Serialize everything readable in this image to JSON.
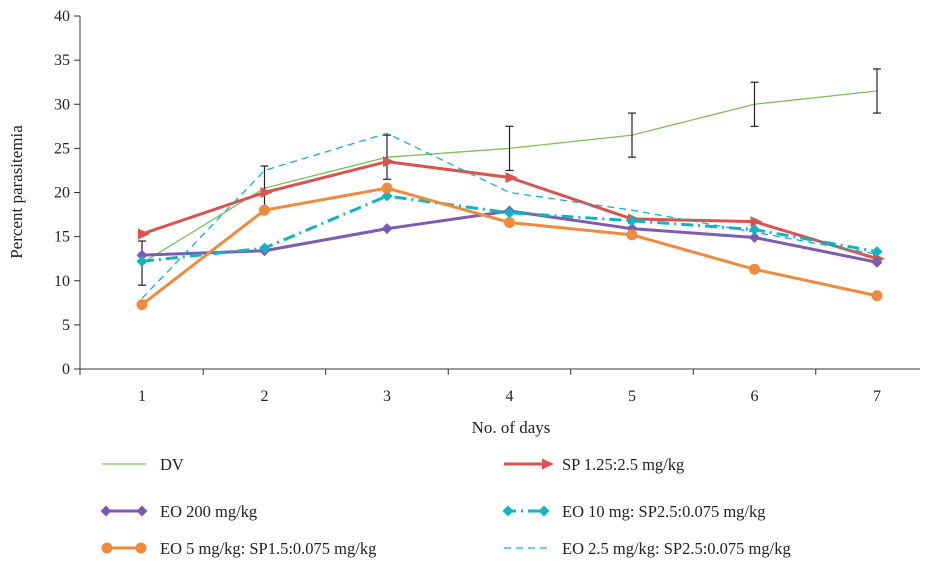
{
  "chart_data": {
    "type": "line",
    "xlabel": "No. of days",
    "ylabel": "Percent parasitemia",
    "x": [
      1,
      2,
      3,
      4,
      5,
      6,
      7
    ],
    "x_tick_labels": [
      "1",
      "2",
      "3",
      "4",
      "5",
      "6",
      "7"
    ],
    "ylim": [
      0,
      40
    ],
    "y_ticks": [
      0,
      5,
      10,
      15,
      20,
      25,
      30,
      35,
      40
    ],
    "grid": false,
    "legend_position": "bottom",
    "series": [
      {
        "name": "DV",
        "values": [
          12,
          20.5,
          24,
          25,
          26.5,
          30,
          31.5
        ],
        "error": [
          2.5,
          2.5,
          2.5,
          2.5,
          2.5,
          2.5,
          2.5
        ],
        "color": "#7dc05a",
        "line_style": "solid",
        "marker": "none"
      },
      {
        "name": "SP 1.25:2.5 mg/kg",
        "values": [
          15.3,
          20,
          23.5,
          21.7,
          17,
          16.7,
          12.5
        ],
        "color": "#d9534f",
        "line_style": "solid",
        "marker": "arrow"
      },
      {
        "name": "EO 200 mg/kg",
        "values": [
          12.9,
          13.4,
          15.9,
          17.9,
          15.9,
          14.9,
          12.1
        ],
        "color": "#7c5bb1",
        "line_style": "solid",
        "marker": "diamond"
      },
      {
        "name": "EO 10 mg: SP2.5:0.075 mg/kg",
        "values": [
          12.2,
          13.7,
          19.6,
          17.7,
          16.8,
          15.8,
          13.3
        ],
        "color": "#12b3c4",
        "line_style": "dash-dot",
        "marker": "diamond"
      },
      {
        "name": "EO 5 mg/kg: SP1.5:0.075 mg/kg",
        "values": [
          7.3,
          18,
          20.5,
          16.6,
          15.2,
          11.3,
          8.3
        ],
        "color": "#f08a3c",
        "line_style": "solid",
        "marker": "circle"
      },
      {
        "name": "EO 2.5 mg/kg: SP2.5:0.075 mg/kg",
        "values": [
          8,
          22.5,
          26.7,
          20,
          18,
          15.5,
          13
        ],
        "color": "#12b3c4",
        "line_style": "dashed",
        "marker": "none"
      }
    ]
  }
}
